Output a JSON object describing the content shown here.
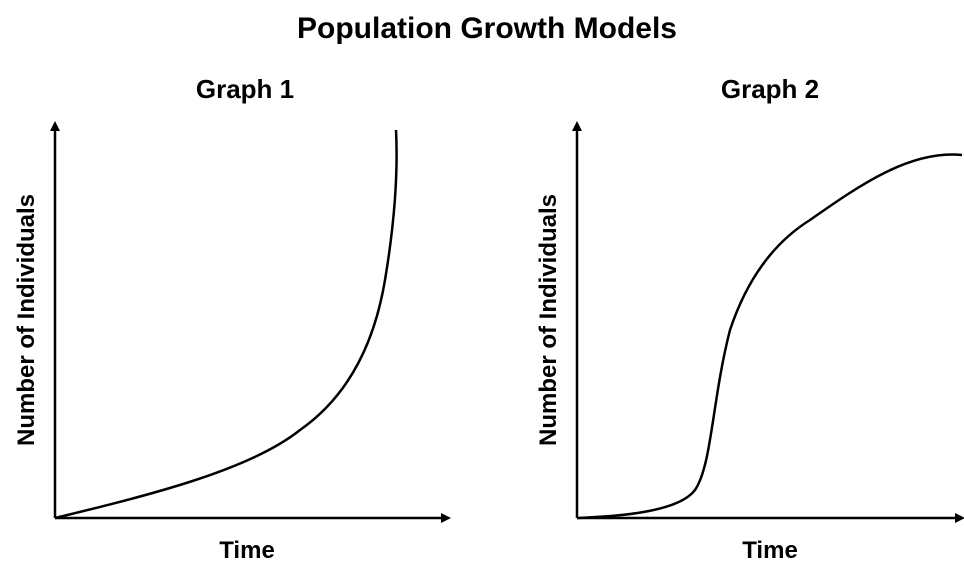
{
  "title": "Population Growth Models",
  "graphs": [
    {
      "title": "Graph 1",
      "x_label": "Time",
      "y_label": "Number of Individuals"
    },
    {
      "title": "Graph 2",
      "x_label": "Time",
      "y_label": "Number of Individuals"
    }
  ]
}
